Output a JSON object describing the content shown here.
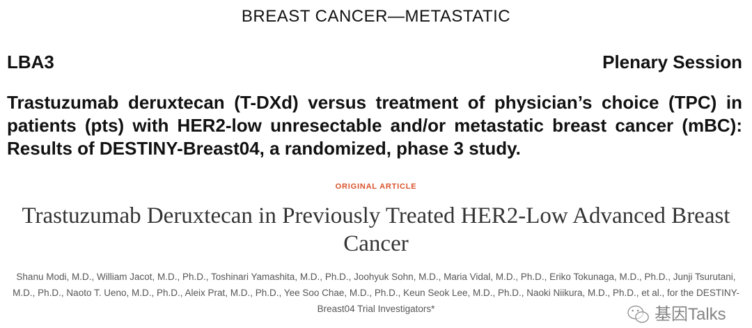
{
  "section_header": "BREAST CANCER—METASTATIC",
  "abstract_code": "LBA3",
  "session": "Plenary Session",
  "abstract_title": "Trastuzumab deruxtecan (T-DXd) versus treatment of physician’s choice (TPC) in patients (pts) with HER2-low unresectable and/or metastatic breast cancer (mBC): Results of DESTINY-Breast04, a randomized, phase 3 study.",
  "article_label": "ORIGINAL ARTICLE",
  "article_title": "Trastuzumab Deruxtecan in Previously Treated HER2-Low Advanced Breast Cancer",
  "authors": "Shanu Modi, M.D., William Jacot, M.D., Ph.D., Toshinari Yamashita, M.D., Ph.D., Joohyuk Sohn, M.D., Maria Vidal, M.D., Ph.D., Eriko Tokunaga, M.D., Ph.D., Junji Tsurutani, M.D., Ph.D., Naoto T. Ueno, M.D., Ph.D., Aleix Prat, M.D., Ph.D., Yee Soo Chae, M.D., Ph.D., Keun Seok Lee, M.D., Ph.D., Naoki Niikura, M.D., Ph.D., et al., for the DESTINY-Breast04 Trial Investigators*",
  "watermark": "基因Talks",
  "colors": {
    "label": "#d9532c",
    "text": "#111111",
    "authors": "#555555"
  }
}
